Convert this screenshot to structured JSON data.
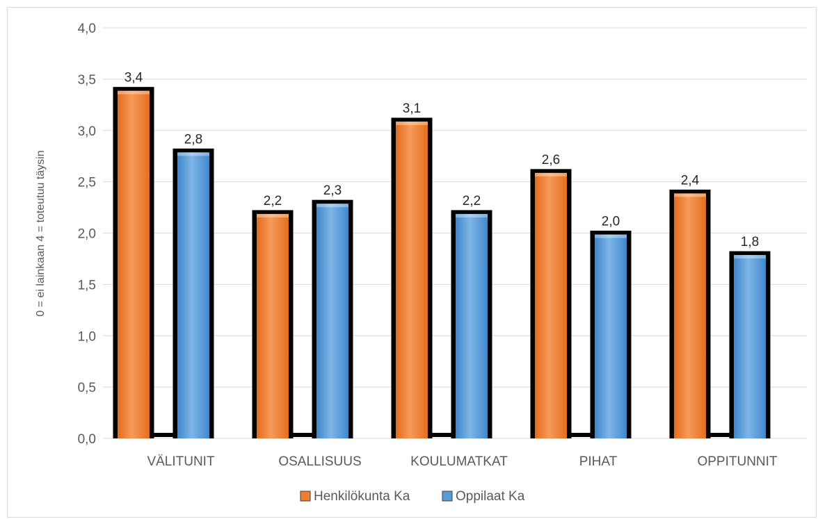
{
  "chart_data": {
    "type": "bar",
    "categories": [
      "VÄLITUNIT",
      "OSALLISUUS",
      "KOULUMATKAT",
      "PIHAT",
      "OPPITUNNIT"
    ],
    "series": [
      {
        "name": "Henkilökunta Ka",
        "values": [
          3.4,
          2.2,
          3.1,
          2.6,
          2.4
        ],
        "labels": [
          "3,4",
          "2,2",
          "3,1",
          "2,6",
          "2,4"
        ],
        "color": "#ed7d31"
      },
      {
        "name": "Oppilaat Ka",
        "values": [
          2.8,
          2.3,
          2.2,
          2.0,
          1.8
        ],
        "labels": [
          "2,8",
          "2,3",
          "2,2",
          "2,0",
          "1,8"
        ],
        "color": "#5b9bd5"
      }
    ],
    "ylabel": "0 = ei lainkaan    4 = toteutuu täysin",
    "ylim": [
      0,
      4
    ],
    "yticks": [
      0,
      0.5,
      1,
      1.5,
      2,
      2.5,
      3,
      3.5,
      4
    ],
    "ytick_labels": [
      "0,0",
      "0,5",
      "1,0",
      "1,5",
      "2,0",
      "2,5",
      "3,0",
      "3,5",
      "4,0"
    ],
    "grid": true,
    "legend_position": "bottom"
  }
}
